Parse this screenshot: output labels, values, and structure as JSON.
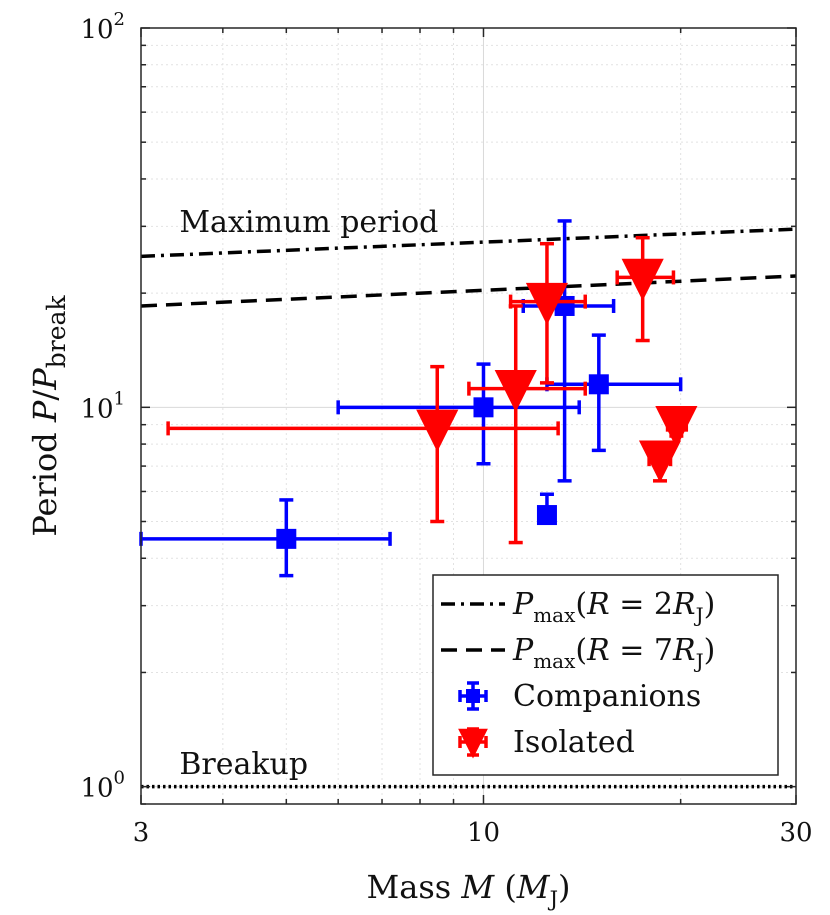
{
  "chart_data": {
    "type": "scatter",
    "xscale": "log",
    "yscale": "log",
    "xlim": [
      3,
      30
    ],
    "ylim": [
      0.9,
      100
    ],
    "xticks": [
      {
        "value": 3,
        "label": "3"
      },
      {
        "value": 10,
        "label": "10"
      },
      {
        "value": 30,
        "label": "30"
      }
    ],
    "yticks": [
      {
        "value": 1,
        "base": "10",
        "exp": "0"
      },
      {
        "value": 10,
        "base": "10",
        "exp": "1"
      },
      {
        "value": 100,
        "base": "10",
        "exp": "2"
      }
    ],
    "xlabel": {
      "pre": "Mass ",
      "var": "M",
      "open": " (",
      "sym": "M",
      "sub": "J",
      "close": ")"
    },
    "ylabel": {
      "pre": "Period ",
      "var1": "P",
      "slash": "/",
      "var2": "P",
      "sub": "break"
    },
    "grid": true,
    "lines": [
      {
        "name": "P_max(R = 2R_J)",
        "style": "dashdot",
        "x": [
          3,
          30
        ],
        "y": [
          25,
          29.5
        ]
      },
      {
        "name": "P_max(R = 7R_J)",
        "style": "dashed",
        "x": [
          3,
          30
        ],
        "y": [
          18.5,
          22.2
        ]
      },
      {
        "name": "Breakup",
        "style": "dotted",
        "x": [
          3,
          30
        ],
        "y": [
          1,
          1
        ]
      }
    ],
    "annotations": [
      {
        "text": "Maximum period",
        "x": 3.2,
        "y": 29
      },
      {
        "text": "Breakup",
        "x": 3.2,
        "y": 1.08
      }
    ],
    "series": [
      {
        "name": "Companions",
        "color": "#0000ff",
        "marker": "square",
        "points": [
          {
            "x": 5.0,
            "y": 4.5,
            "xerr": [
              3.0,
              7.2
            ],
            "yerr": [
              3.6,
              5.7
            ]
          },
          {
            "x": 10.0,
            "y": 10.0,
            "xerr": [
              6.0,
              14.0
            ],
            "yerr": [
              7.1,
              13.0
            ]
          },
          {
            "x": 12.5,
            "y": 5.2,
            "xerr": [
              12.5,
              12.5
            ],
            "yerr": [
              5.2,
              5.9
            ]
          },
          {
            "x": 13.3,
            "y": 18.5,
            "xerr": [
              11.5,
              15.8
            ],
            "yerr": [
              6.4,
              31.0
            ]
          },
          {
            "x": 15.0,
            "y": 11.5,
            "xerr": [
              12.5,
              20.0
            ],
            "yerr": [
              7.7,
              15.5
            ]
          }
        ]
      },
      {
        "name": "Isolated",
        "color": "#ff0000",
        "marker": "triangle-down",
        "points": [
          {
            "x": 8.5,
            "y": 8.8,
            "xerr": [
              3.3,
              13.0
            ],
            "yerr": [
              5.0,
              12.8
            ]
          },
          {
            "x": 11.2,
            "y": 11.2,
            "xerr": [
              9.5,
              14.3
            ],
            "yerr": [
              4.4,
              18.5
            ]
          },
          {
            "x": 12.5,
            "y": 19.0,
            "xerr": [
              11.0,
              14.3
            ],
            "yerr": [
              11.6,
              27.0
            ]
          },
          {
            "x": 17.5,
            "y": 22.0,
            "xerr": [
              16.0,
              19.5
            ],
            "yerr": [
              15.0,
              28.0
            ]
          },
          {
            "x": 18.6,
            "y": 7.3,
            "xerr": [
              17.9,
              19.3
            ],
            "yerr": [
              6.4,
              7.9
            ]
          },
          {
            "x": 19.7,
            "y": 9.0,
            "xerr": [
              19.1,
              20.4
            ],
            "yerr": [
              8.4,
              9.8
            ]
          }
        ]
      }
    ],
    "legend": {
      "position": "bottom-right",
      "items": [
        {
          "kind": "line",
          "style": "dashdot",
          "text": {
            "var": "P",
            "sub": "max",
            "open": "(",
            "lhs": "R",
            "eq": " = 2",
            "rhs": "R",
            "rsub": "J",
            "close": ")"
          }
        },
        {
          "kind": "line",
          "style": "dashed",
          "text": {
            "var": "P",
            "sub": "max",
            "open": "(",
            "lhs": "R",
            "eq": " = 7",
            "rhs": "R",
            "rsub": "J",
            "close": ")"
          }
        },
        {
          "kind": "marker",
          "series": 0,
          "label": "Companions"
        },
        {
          "kind": "marker",
          "series": 1,
          "label": "Isolated"
        }
      ]
    }
  }
}
